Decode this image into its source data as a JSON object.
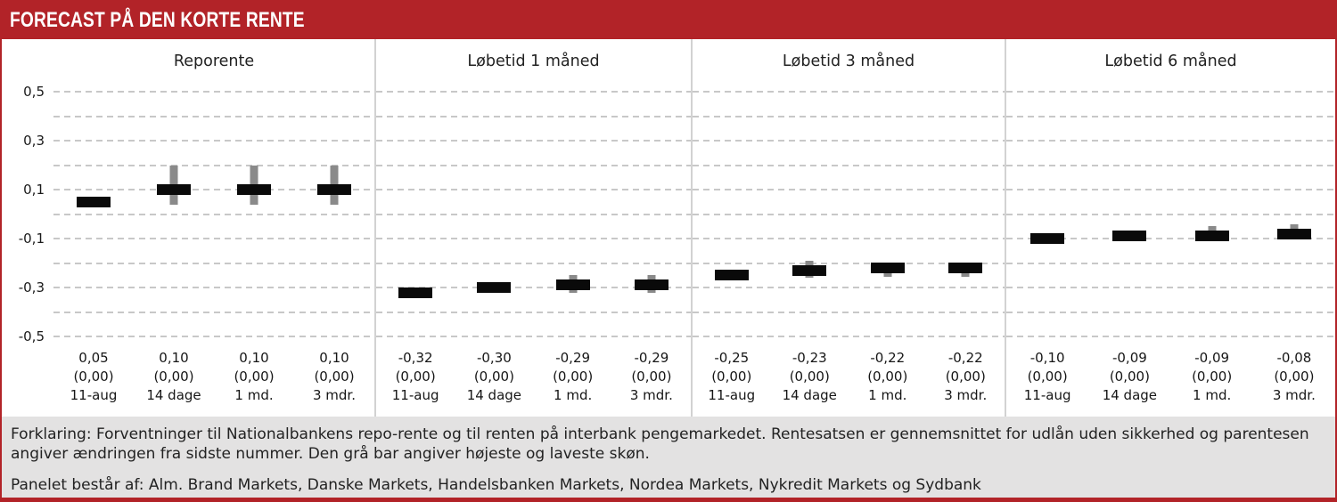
{
  "header": {
    "title": "FORECAST PÅ DEN KORTE RENTE"
  },
  "colors": {
    "accent_red": "#b22328",
    "bar_black": "#0a0a0a",
    "bar_gray": "#8a8a8a",
    "gridline": "#c8c8c8",
    "panel_separator": "#d2d2d2",
    "footer_background": "#e3e2e2",
    "text": "#1d1d1d"
  },
  "chart_data": {
    "type": "bar",
    "title": "FORECAST PÅ DEN KORTE RENTE",
    "ylim": [
      -0.5,
      0.5
    ],
    "grid_step": 0.1,
    "grid_style": "dashed",
    "yticks": [
      {
        "label": "0,5",
        "value": 0.5
      },
      {
        "label": "0,3",
        "value": 0.3
      },
      {
        "label": "0,1",
        "value": 0.1
      },
      {
        "label": "-0,1",
        "value": -0.1
      },
      {
        "label": "-0,3",
        "value": -0.3
      },
      {
        "label": "-0,5",
        "value": -0.5
      }
    ],
    "panels": [
      {
        "title": "Reporente",
        "points": [
          {
            "value": 0.05,
            "value_label": "0,05",
            "change_label": "(0,00)",
            "period": "11-aug",
            "range_hi": null,
            "range_lo": null
          },
          {
            "value": 0.1,
            "value_label": "0,10",
            "change_label": "(0,00)",
            "period": "14 dage",
            "range_hi": 0.2,
            "range_lo": 0.04
          },
          {
            "value": 0.1,
            "value_label": "0,10",
            "change_label": "(0,00)",
            "period": "1 md.",
            "range_hi": 0.2,
            "range_lo": 0.04
          },
          {
            "value": 0.1,
            "value_label": "0,10",
            "change_label": "(0,00)",
            "period": "3 mdr.",
            "range_hi": 0.2,
            "range_lo": 0.04
          }
        ]
      },
      {
        "title": "Løbetid 1 måned",
        "points": [
          {
            "value": -0.32,
            "value_label": "-0,32",
            "change_label": "(0,00)",
            "period": "11-aug",
            "range_hi": null,
            "range_lo": null
          },
          {
            "value": -0.3,
            "value_label": "-0,30",
            "change_label": "(0,00)",
            "period": "14 dage",
            "range_hi": null,
            "range_lo": null
          },
          {
            "value": -0.29,
            "value_label": "-0,29",
            "change_label": "(0,00)",
            "period": "1 md.",
            "range_hi": -0.25,
            "range_lo": -0.32
          },
          {
            "value": -0.29,
            "value_label": "-0,29",
            "change_label": "(0,00)",
            "period": "3 mdr.",
            "range_hi": -0.25,
            "range_lo": -0.32
          }
        ]
      },
      {
        "title": "Løbetid 3 måned",
        "points": [
          {
            "value": -0.25,
            "value_label": "-0,25",
            "change_label": "(0,00)",
            "period": "11-aug",
            "range_hi": null,
            "range_lo": null
          },
          {
            "value": -0.23,
            "value_label": "-0,23",
            "change_label": "(0,00)",
            "period": "14 dage",
            "range_hi": -0.19,
            "range_lo": -0.26
          },
          {
            "value": -0.22,
            "value_label": "-0,22",
            "change_label": "(0,00)",
            "period": "1 md.",
            "range_hi": -0.21,
            "range_lo": -0.255
          },
          {
            "value": -0.22,
            "value_label": "-0,22",
            "change_label": "(0,00)",
            "period": "3 mdr.",
            "range_hi": -0.21,
            "range_lo": -0.255
          }
        ]
      },
      {
        "title": "Løbetid 6 måned",
        "points": [
          {
            "value": -0.1,
            "value_label": "-0,10",
            "change_label": "(0,00)",
            "period": "11-aug",
            "range_hi": null,
            "range_lo": null
          },
          {
            "value": -0.09,
            "value_label": "-0,09",
            "change_label": "(0,00)",
            "period": "14 dage",
            "range_hi": null,
            "range_lo": null
          },
          {
            "value": -0.09,
            "value_label": "-0,09",
            "change_label": "(0,00)",
            "period": "1 md.",
            "range_hi": -0.05,
            "range_lo": -0.1
          },
          {
            "value": -0.08,
            "value_label": "-0,08",
            "change_label": "(0,00)",
            "period": "3 mdr.",
            "range_hi": -0.04,
            "range_lo": -0.1
          }
        ]
      }
    ]
  },
  "footer": {
    "explanation": "Forklaring: Forventninger til Nationalbankens repo-rente og til renten på interbank pengemarkedet. Rentesatsen er gennemsnittet for udlån uden sikkerhed og parentesen angiver ændringen fra sidste nummer. Den grå bar angiver højeste og laveste skøn.",
    "panel_line": "Panelet består af: Alm. Brand Markets, Danske Markets, Handelsbanken Markets, Nordea Markets, Nykredit Markets og Sydbank"
  }
}
